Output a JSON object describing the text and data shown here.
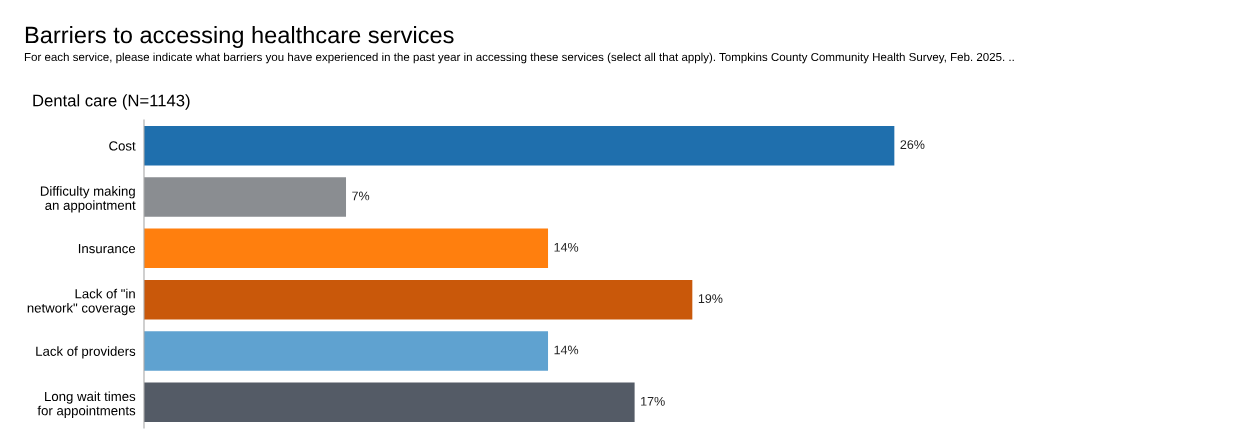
{
  "chart_data": {
    "type": "bar",
    "orientation": "horizontal",
    "title": "Barriers to accessing healthcare services",
    "subtitle": "For each service, please indicate what barriers you have experienced in the past year in accessing these services (select all that apply). Tompkins County Community Health Survey, Feb. 2025. ..",
    "annotations": [
      "Dental care (N=1143)"
    ],
    "categories": [
      "Cost",
      "Difficulty making\nan appointment",
      "Insurance",
      "Lack of \"in\nnetwork\" coverage",
      "Lack of providers",
      "Long wait times\nfor appointments"
    ],
    "values": [
      26,
      7,
      14,
      19,
      14,
      17
    ],
    "colors": [
      "#1f6fad",
      "#8a8d91",
      "#ff7f0e",
      "#c9580a",
      "#5fa2d0",
      "#545b66"
    ],
    "value_labels": [
      "26%",
      "7%",
      "14%",
      "19%",
      "14%",
      "17%"
    ],
    "grid": false,
    "legend": false
  }
}
